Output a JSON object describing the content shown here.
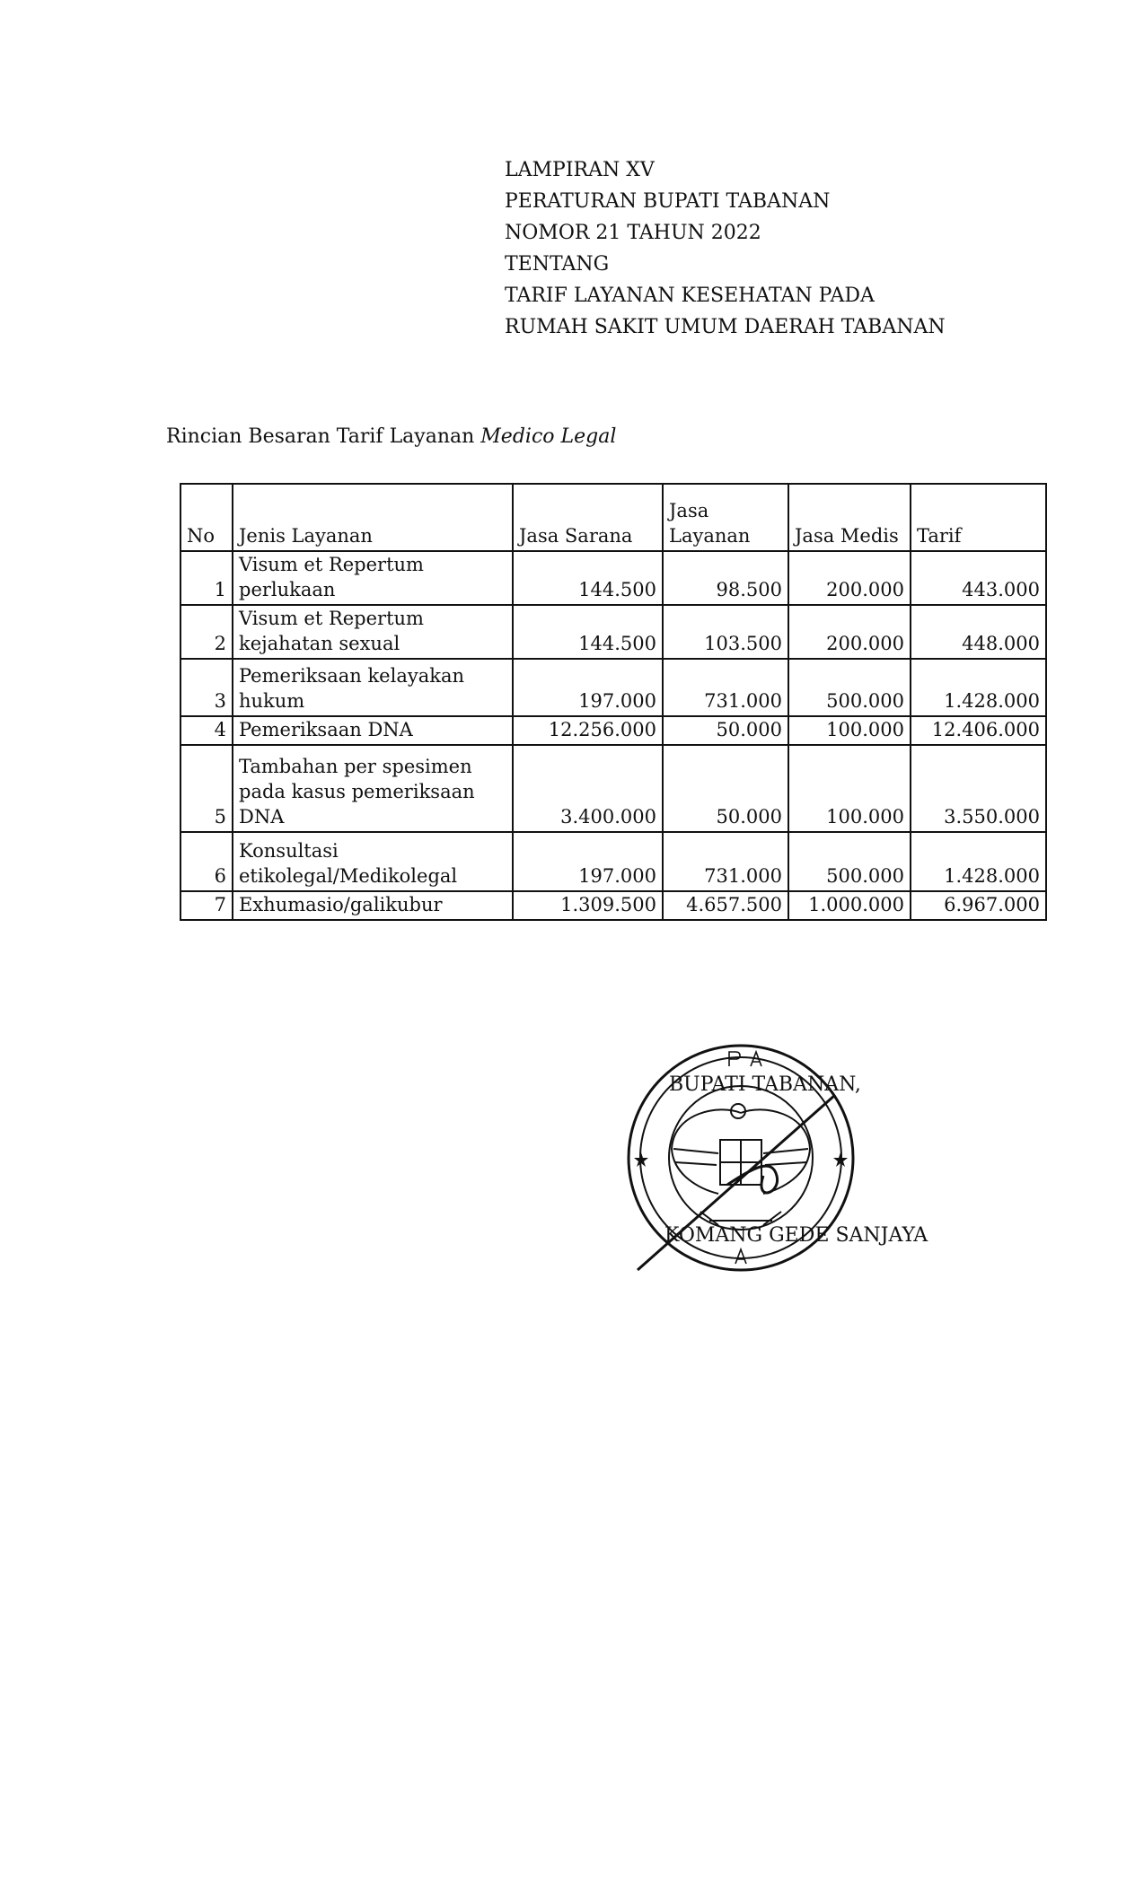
{
  "header": {
    "lines": [
      "LAMPIRAN XV",
      "PERATURAN BUPATI TABANAN",
      "NOMOR 21 TAHUN 2022",
      "TENTANG",
      "TARIF LAYANAN KESEHATAN PADA",
      "RUMAH SAKIT UMUM DAERAH TABANAN"
    ]
  },
  "subtitle": {
    "text": "Rincian Besaran Tarif Layanan ",
    "italic": "Medico Legal"
  },
  "table": {
    "columns": [
      "No",
      "Jenis Layanan",
      "Jasa Sarana",
      "Jasa Layanan",
      "Jasa Medis",
      "Tarif"
    ],
    "rows": [
      {
        "no": "1",
        "jenis": "Visum et Repertum perlukaan",
        "sarana": "144.500",
        "layanan": "98.500",
        "medis": "200.000",
        "tarif": "443.000"
      },
      {
        "no": "2",
        "jenis": "Visum et Repertum kejahatan sexual",
        "sarana": "144.500",
        "layanan": "103.500",
        "medis": "200.000",
        "tarif": "448.000"
      },
      {
        "no": "3",
        "jenis": "Pemeriksaan kelayakan hukum",
        "sarana": "197.000",
        "layanan": "731.000",
        "medis": "500.000",
        "tarif": "1.428.000"
      },
      {
        "no": "4",
        "jenis": "Pemeriksaan DNA",
        "sarana": "12.256.000",
        "layanan": "50.000",
        "medis": "100.000",
        "tarif": "12.406.000"
      },
      {
        "no": "5",
        "jenis": "Tambahan per spesimen pada kasus pemeriksaan DNA",
        "sarana": "3.400.000",
        "layanan": "50.000",
        "medis": "100.000",
        "tarif": "3.550.000"
      },
      {
        "no": "6",
        "jenis": "Konsultasi etikolegal/Medikolegal",
        "sarana": "197.000",
        "layanan": "731.000",
        "medis": "500.000",
        "tarif": "1.428.000"
      },
      {
        "no": "7",
        "jenis": "Exhumasio/galikubur",
        "sarana": "1.309.500",
        "layanan": "4.657.500",
        "medis": "1.000.000",
        "tarif": "6.967.000"
      }
    ]
  },
  "signature": {
    "title": "BUPATI TABANAN,",
    "name": "KOMANG GEDE SANJAYA",
    "stamp_text_top": "BUPATI",
    "stamp_text_bottom": "TABANAN"
  }
}
